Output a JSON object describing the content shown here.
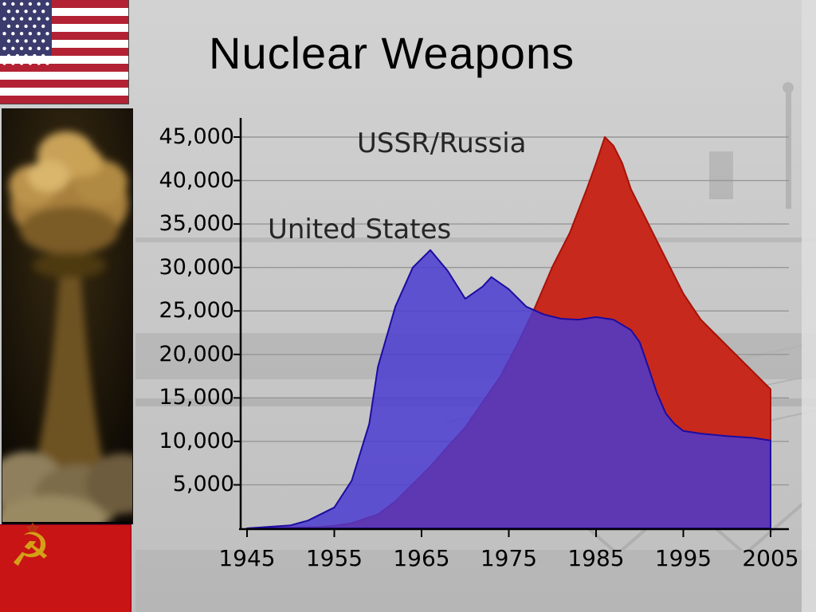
{
  "slide": {
    "title": "Nuclear Weapons"
  },
  "colors": {
    "slide_bg": "#c9c9c9",
    "grid": "#969696",
    "axis": "#000000",
    "us_area": "#4a3ad0",
    "us_stroke": "#1c0ca0",
    "ussr_area": "#c8291d",
    "ussr_stroke": "#a81208",
    "us_flag_red": "#b22234",
    "us_flag_blue": "#3c3b6e",
    "soviet_red": "#c81414",
    "soviet_gold": "#d4a017"
  },
  "icons": {
    "hammer_sickle": "☭",
    "soviet_star": "★"
  },
  "chart_data": {
    "type": "area",
    "title": "",
    "xlabel": "",
    "ylabel": "",
    "xlim": [
      1945,
      2008
    ],
    "ylim": [
      0,
      45000
    ],
    "grid": true,
    "legend_position": "inline-labels",
    "x_ticks": [
      1945,
      1955,
      1965,
      1975,
      1985,
      1995,
      2005
    ],
    "y_ticks": [
      {
        "value": 45000,
        "label": "45,000"
      },
      {
        "value": 40000,
        "label": "40,000"
      },
      {
        "value": 35000,
        "label": "35,000"
      },
      {
        "value": 30000,
        "label": "30,000"
      },
      {
        "value": 25000,
        "label": "25,000"
      },
      {
        "value": 20000,
        "label": "20,000"
      },
      {
        "value": 15000,
        "label": "15,000"
      },
      {
        "value": 10000,
        "label": "10,000"
      },
      {
        "value": 5000,
        "label": "5,000"
      }
    ],
    "series": [
      {
        "name": "USSR/Russia",
        "color": "#c8291d",
        "stroke": "#a81208",
        "opacity": 1,
        "points": [
          [
            1945,
            0
          ],
          [
            1949,
            100
          ],
          [
            1953,
            150
          ],
          [
            1955,
            300
          ],
          [
            1957,
            600
          ],
          [
            1960,
            1600
          ],
          [
            1962,
            3100
          ],
          [
            1964,
            5100
          ],
          [
            1966,
            7100
          ],
          [
            1968,
            9400
          ],
          [
            1970,
            11600
          ],
          [
            1972,
            14500
          ],
          [
            1974,
            17400
          ],
          [
            1976,
            21200
          ],
          [
            1978,
            25400
          ],
          [
            1980,
            30100
          ],
          [
            1982,
            34000
          ],
          [
            1984,
            39200
          ],
          [
            1985,
            42000
          ],
          [
            1986,
            45000
          ],
          [
            1987,
            44000
          ],
          [
            1988,
            42000
          ],
          [
            1989,
            39000
          ],
          [
            1990,
            37000
          ],
          [
            1991,
            35000
          ],
          [
            1992,
            33000
          ],
          [
            1993,
            31000
          ],
          [
            1994,
            29000
          ],
          [
            1995,
            27000
          ],
          [
            1996,
            25500
          ],
          [
            1997,
            24000
          ],
          [
            1998,
            23000
          ],
          [
            1999,
            22000
          ],
          [
            2000,
            21000
          ],
          [
            2001,
            20000
          ],
          [
            2002,
            19000
          ],
          [
            2003,
            18000
          ],
          [
            2004,
            17000
          ],
          [
            2005,
            16000
          ]
        ]
      },
      {
        "name": "United States",
        "color": "#4a3ad0",
        "stroke": "#1c0ca0",
        "opacity": 0.84,
        "points": [
          [
            1945,
            0
          ],
          [
            1950,
            350
          ],
          [
            1952,
            900
          ],
          [
            1955,
            2400
          ],
          [
            1957,
            5500
          ],
          [
            1959,
            12000
          ],
          [
            1960,
            18600
          ],
          [
            1962,
            25500
          ],
          [
            1964,
            30000
          ],
          [
            1966,
            32000
          ],
          [
            1968,
            29600
          ],
          [
            1970,
            26400
          ],
          [
            1972,
            27800
          ],
          [
            1973,
            28900
          ],
          [
            1975,
            27500
          ],
          [
            1977,
            25500
          ],
          [
            1979,
            24600
          ],
          [
            1981,
            24100
          ],
          [
            1983,
            24000
          ],
          [
            1985,
            24300
          ],
          [
            1987,
            24000
          ],
          [
            1989,
            22800
          ],
          [
            1990,
            21400
          ],
          [
            1991,
            18500
          ],
          [
            1992,
            15500
          ],
          [
            1993,
            13200
          ],
          [
            1994,
            12000
          ],
          [
            1995,
            11200
          ],
          [
            1997,
            10900
          ],
          [
            2000,
            10600
          ],
          [
            2003,
            10400
          ],
          [
            2005,
            10100
          ]
        ]
      }
    ]
  }
}
